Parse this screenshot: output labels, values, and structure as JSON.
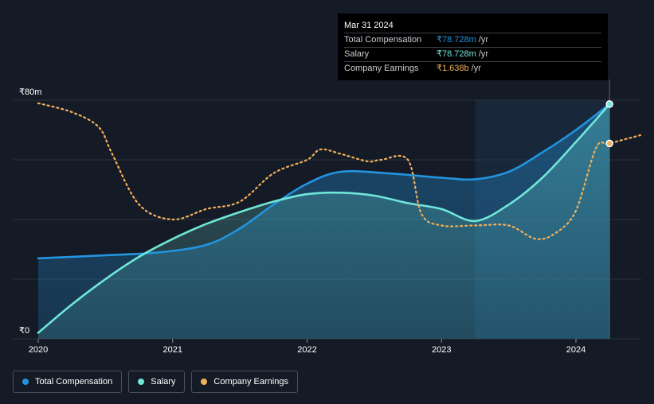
{
  "colors": {
    "background": "#151b26",
    "total_compensation": "#2394df",
    "salary": "#6fe6d8",
    "company_earnings": "#f2b05b",
    "grid": "#2b313c",
    "highlight": "#1c3148"
  },
  "tooltip": {
    "date": "Mar 31 2024",
    "rows": [
      {
        "label": "Total Compensation",
        "value": "₹78.728m",
        "unit": "/yr"
      },
      {
        "label": "Salary",
        "value": "₹78.728m",
        "unit": "/yr"
      },
      {
        "label": "Company Earnings",
        "value": "₹1.638b",
        "unit": "/yr"
      }
    ]
  },
  "legend": [
    {
      "label": "Total Compensation",
      "color": "#2394df"
    },
    {
      "label": "Salary",
      "color": "#6fe6d8"
    },
    {
      "label": "Company Earnings",
      "color": "#f2b05b"
    }
  ],
  "chart_data": {
    "type": "area",
    "title": "",
    "xlabel": "",
    "ylabel": "",
    "y_tick_labels": [
      "₹80m",
      "₹0"
    ],
    "y_ticks": [
      80,
      0
    ],
    "x_tick_labels": [
      "2020",
      "2021",
      "2022",
      "2023",
      "2024"
    ],
    "x_ticks": [
      2020,
      2021,
      2022,
      2023,
      2024
    ],
    "xlim": [
      2019.83,
      2024.5
    ],
    "ylim": [
      0,
      80
    ],
    "grid": true,
    "legend_position": "bottom-left",
    "highlight_range": [
      2023.25,
      2024.25
    ],
    "series": [
      {
        "name": "Total Compensation",
        "style": "area",
        "x": [
          2020.0,
          2020.5,
          2020.9,
          2021.25,
          2021.5,
          2021.75,
          2022.0,
          2022.25,
          2022.6,
          2023.0,
          2023.25,
          2023.5,
          2023.75,
          2024.0,
          2024.25
        ],
        "y": [
          27,
          28,
          29,
          31.5,
          37,
          45,
          52,
          56,
          55.5,
          54,
          53.5,
          56,
          62.5,
          70,
          78.7
        ]
      },
      {
        "name": "Salary",
        "style": "area",
        "x": [
          2020.0,
          2020.25,
          2020.5,
          2020.75,
          2021.0,
          2021.25,
          2021.5,
          2021.75,
          2022.0,
          2022.25,
          2022.5,
          2022.75,
          2023.0,
          2023.25,
          2023.5,
          2023.75,
          2024.0,
          2024.25
        ],
        "y": [
          2,
          11.5,
          20,
          27.5,
          33.5,
          38.5,
          42.5,
          46,
          48.5,
          49,
          48,
          45.5,
          43.5,
          39.5,
          45,
          54,
          66,
          78.7
        ]
      },
      {
        "name": "Company Earnings",
        "style": "dotted",
        "unit": "relative",
        "x": [
          2020.0,
          2020.25,
          2020.45,
          2020.55,
          2020.75,
          2021.0,
          2021.25,
          2021.5,
          2021.75,
          2022.0,
          2022.1,
          2022.25,
          2022.45,
          2022.55,
          2022.75,
          2022.85,
          2023.0,
          2023.25,
          2023.5,
          2023.7,
          2023.85,
          2024.0,
          2024.15,
          2024.25,
          2024.5
        ],
        "y": [
          79,
          76,
          71,
          62,
          45,
          40,
          43.5,
          46,
          55.5,
          60,
          63.5,
          62,
          59.5,
          60,
          60,
          42,
          38,
          38,
          38,
          33.5,
          35.5,
          43,
          64,
          65.5,
          68.5
        ]
      }
    ]
  }
}
